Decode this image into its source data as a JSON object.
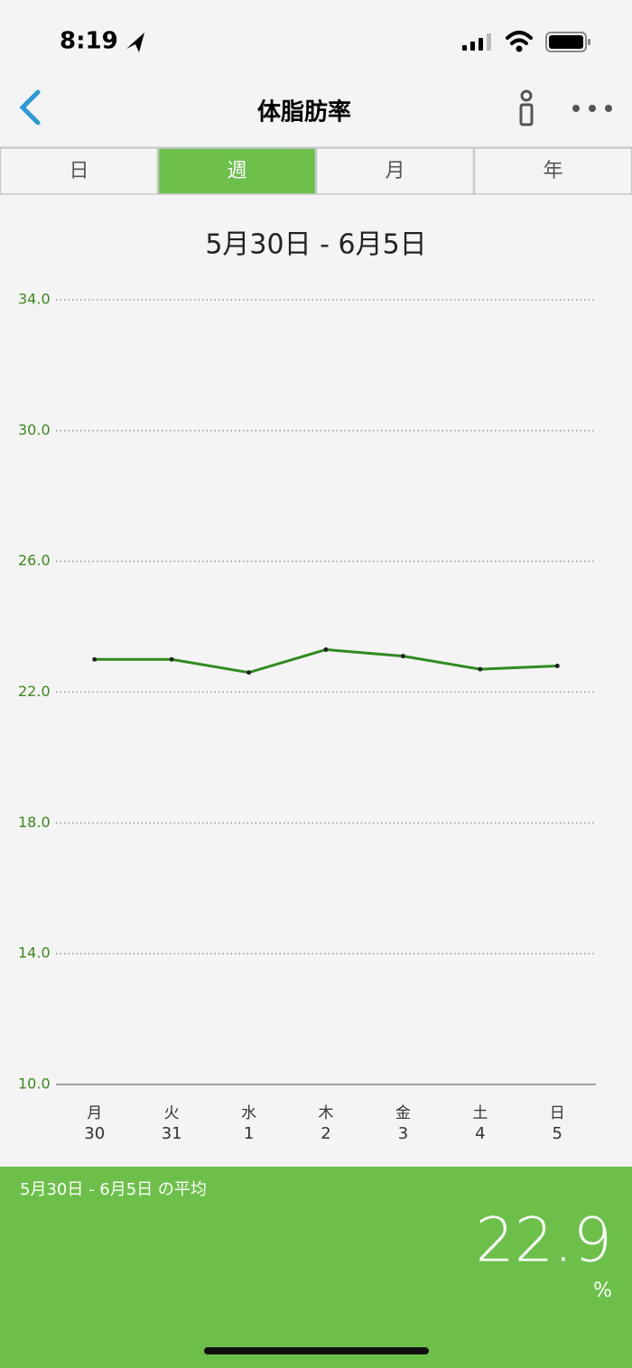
{
  "status_bar": {
    "time": "8:19"
  },
  "nav": {
    "title": "体脂肪率"
  },
  "tabs": {
    "items": [
      "日",
      "週",
      "月",
      "年"
    ],
    "active": 1
  },
  "period": "5月30日 - 6月5日",
  "chart_data": {
    "type": "line",
    "categories": [
      "月",
      "火",
      "水",
      "木",
      "金",
      "土",
      "日"
    ],
    "category_days": [
      "30",
      "31",
      "1",
      "2",
      "3",
      "4",
      "5"
    ],
    "series": [
      {
        "name": "体脂肪率",
        "color": "#2e8b1e",
        "values": [
          23.0,
          23.0,
          22.6,
          23.3,
          23.1,
          22.7,
          22.8
        ]
      }
    ],
    "ylim": [
      10,
      34
    ],
    "yticks": [
      {
        "value": 10,
        "label": "10.0"
      },
      {
        "value": 14,
        "label": "14.0"
      },
      {
        "value": 18,
        "label": "18.0"
      },
      {
        "value": 22,
        "label": "22.0"
      },
      {
        "value": 26,
        "label": "26.0"
      },
      {
        "value": 30,
        "label": "30.0"
      },
      {
        "value": 34,
        "label": "34.0"
      }
    ],
    "grid": true
  },
  "summary": {
    "label": "5月30日 - 6月5日 の平均",
    "value": "22.9",
    "unit": "%"
  }
}
